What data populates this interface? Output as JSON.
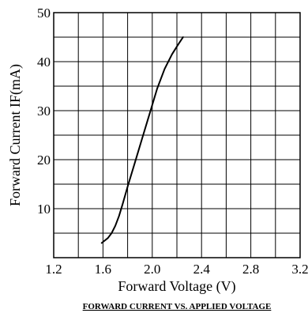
{
  "chart_data": {
    "type": "line",
    "title": "FORWARD CURRENT VS. APPLIED VOLTAGE",
    "xlabel": "Forward Voltage  (V)",
    "ylabel": "Forward Current IF(mA)",
    "xlim": [
      1.2,
      3.2
    ],
    "ylim": [
      0,
      50
    ],
    "xticks": [
      1.2,
      1.6,
      2.0,
      2.4,
      2.8,
      3.2
    ],
    "xtick_labels": [
      "1.2",
      "1.6",
      "2.0",
      "2.4",
      "2.8",
      "3.2"
    ],
    "yticks": [
      10,
      20,
      30,
      40,
      50
    ],
    "ytick_labels": [
      "10",
      "20",
      "30",
      "40",
      "50"
    ],
    "x_minor_step": 0.2,
    "y_minor_step": 5,
    "grid": true,
    "series": [
      {
        "x": [
          1.59,
          1.64,
          1.67,
          1.7,
          1.73,
          1.76,
          1.8,
          1.86,
          1.92,
          1.98,
          2.04,
          2.1,
          2.16,
          2.21,
          2.25
        ],
        "y": [
          3,
          4,
          5,
          6.5,
          8.5,
          11,
          14.5,
          19.5,
          24.5,
          29.5,
          34.5,
          38.5,
          41.5,
          43.5,
          45
        ],
        "color": "#000000"
      }
    ]
  }
}
